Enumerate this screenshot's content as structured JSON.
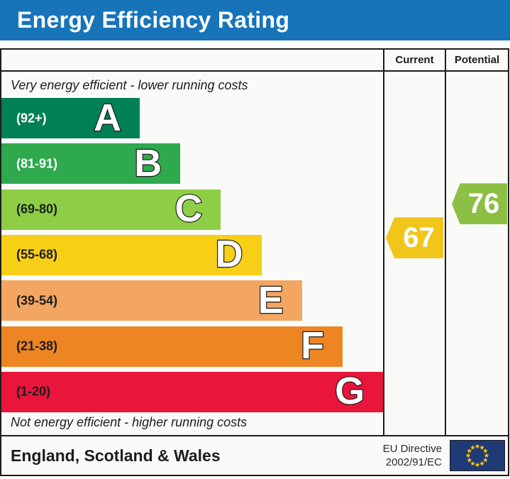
{
  "header": {
    "title": "Energy Efficiency Rating"
  },
  "table": {
    "columns": {
      "current": "Current",
      "potential": "Potential"
    },
    "captions": {
      "top": "Very energy efficient - lower running costs",
      "bottom": "Not energy efficient - higher running costs"
    }
  },
  "footer": {
    "region": "England, Scotland & Wales",
    "directive_line1": "EU Directive",
    "directive_line2": "2002/91/EC",
    "flag_icon": "eu-flag-icon"
  },
  "colors": {
    "title_bar": "#1774b9",
    "border": "#1d1d1b",
    "panel_bg": "#fafaf8",
    "eu_flag_bg": "#1f3a77",
    "eu_star": "#fecb00"
  },
  "chart_data": {
    "type": "bar",
    "title": "Energy Efficiency Rating",
    "categories": [
      "A",
      "B",
      "C",
      "D",
      "E",
      "F",
      "G"
    ],
    "bands": [
      {
        "letter": "A",
        "range_label": "(92+)",
        "min": 92,
        "max": 100,
        "color": "#008054",
        "range_text_color": "#ffffff"
      },
      {
        "letter": "B",
        "range_label": "(81-91)",
        "min": 81,
        "max": 91,
        "color": "#2ea94d",
        "range_text_color": "#ffffff"
      },
      {
        "letter": "C",
        "range_label": "(69-80)",
        "min": 69,
        "max": 80,
        "color": "#8dce46",
        "range_text_color": "#1d1d1b"
      },
      {
        "letter": "D",
        "range_label": "(55-68)",
        "min": 55,
        "max": 68,
        "color": "#f7cf17",
        "range_text_color": "#1d1d1b"
      },
      {
        "letter": "E",
        "range_label": "(39-54)",
        "min": 39,
        "max": 54,
        "color": "#f3a661",
        "range_text_color": "#1d1d1b"
      },
      {
        "letter": "F",
        "range_label": "(21-38)",
        "min": 21,
        "max": 38,
        "color": "#ee8523",
        "range_text_color": "#1d1d1b"
      },
      {
        "letter": "G",
        "range_label": "(1-20)",
        "min": 1,
        "max": 20,
        "color": "#e9153b",
        "range_text_color": "#1d1d1b"
      }
    ],
    "markers": {
      "current": {
        "value": 67,
        "band": "D",
        "arrow_color": "#f2c51b"
      },
      "potential": {
        "value": 76,
        "band": "C",
        "arrow_color": "#8cbf43"
      }
    }
  }
}
